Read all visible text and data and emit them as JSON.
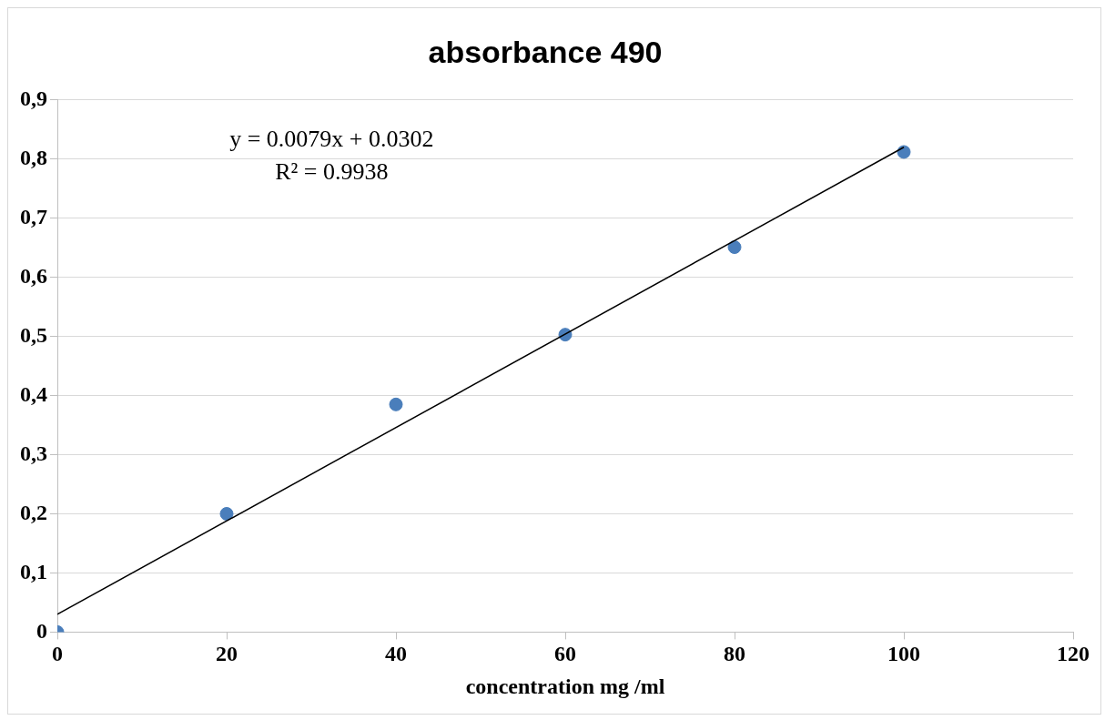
{
  "chart_data": {
    "type": "scatter",
    "title": "absorbance 490",
    "xlabel": "concentration mg /ml",
    "series": [
      {
        "color": "#4a7ebb",
        "marker": "circle",
        "x": [
          0,
          20,
          40,
          60,
          80,
          100
        ],
        "values": [
          0,
          0.2,
          0.385,
          0.503,
          0.651,
          0.812
        ]
      },
      {
        "type": "line",
        "color": "#000000",
        "x": [
          0,
          100
        ],
        "values": [
          0.03,
          0.82
        ]
      }
    ],
    "xlim": [
      0,
      120
    ],
    "xticks": [
      0,
      20,
      40,
      60,
      80,
      100,
      120
    ],
    "ylim": [
      0,
      0.9
    ],
    "yticks": [
      {
        "value": 0,
        "label": "0"
      },
      {
        "value": 0.1,
        "label": "0,1"
      },
      {
        "value": 0.2,
        "label": "0,2"
      },
      {
        "value": 0.3,
        "label": "0,3"
      },
      {
        "value": 0.4,
        "label": "0,4"
      },
      {
        "value": 0.5,
        "label": "0,5"
      },
      {
        "value": 0.6,
        "label": "0,6"
      },
      {
        "value": 0.7,
        "label": "0,7"
      },
      {
        "value": 0.8,
        "label": "0,8"
      },
      {
        "value": 0.9,
        "label": "0,9"
      }
    ],
    "grid": "y",
    "annotations": [
      "y = 0.0079x + 0.0302",
      "R² = 0.9938"
    ]
  }
}
